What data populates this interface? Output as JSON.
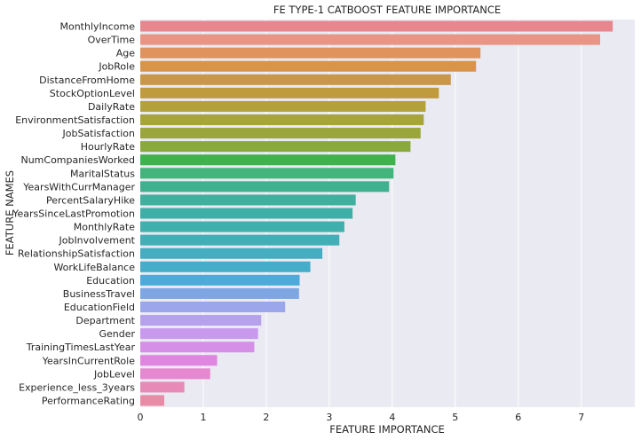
{
  "chart_data": {
    "type": "bar",
    "orientation": "horizontal",
    "title": "FE TYPE-1 CATBOOST FEATURE IMPORTANCE",
    "xlabel": "FEATURE IMPORTANCE",
    "ylabel": "FEATURE NAMES",
    "xlim": [
      0,
      7.85
    ],
    "xticks": [
      0,
      1,
      2,
      3,
      4,
      5,
      6,
      7
    ],
    "grid": true,
    "categories": [
      "MonthlyIncome",
      "OverTime",
      "Age",
      "JobRole",
      "DistanceFromHome",
      "StockOptionLevel",
      "DailyRate",
      "EnvironmentSatisfaction",
      "JobSatisfaction",
      "HourlyRate",
      "NumCompaniesWorked",
      "MaritalStatus",
      "YearsWithCurrManager",
      "PercentSalaryHike",
      "YearsSinceLastPromotion",
      "MonthlyRate",
      "JobInvolvement",
      "RelationshipSatisfaction",
      "WorkLifeBalance",
      "Education",
      "BusinessTravel",
      "EducationField",
      "Department",
      "Gender",
      "TrainingTimesLastYear",
      "YearsInCurrentRole",
      "JobLevel",
      "Experience_less_3years",
      "PerformanceRating"
    ],
    "values": [
      7.5,
      7.3,
      5.4,
      5.33,
      4.93,
      4.74,
      4.53,
      4.5,
      4.45,
      4.29,
      4.05,
      4.02,
      3.95,
      3.42,
      3.37,
      3.24,
      3.16,
      2.89,
      2.7,
      2.53,
      2.52,
      2.3,
      1.92,
      1.87,
      1.81,
      1.22,
      1.11,
      0.7,
      0.38
    ],
    "colors": [
      "#e8868e",
      "#e89586",
      "#e0935d",
      "#d89448",
      "#c9974a",
      "#c09b3d",
      "#b3a23c",
      "#a6a43b",
      "#9aa63c",
      "#8aa93c",
      "#3fb24e",
      "#42b47c",
      "#3fb18f",
      "#3eb09d",
      "#3eafa6",
      "#3fb0ad",
      "#42afb7",
      "#44adc0",
      "#45acca",
      "#4eaada",
      "#7ea6e3",
      "#9ca6ea",
      "#b6a2ec",
      "#c79aed",
      "#d68fe6",
      "#e186e0",
      "#e688cf",
      "#e88ab8",
      "#e88ba6"
    ]
  }
}
